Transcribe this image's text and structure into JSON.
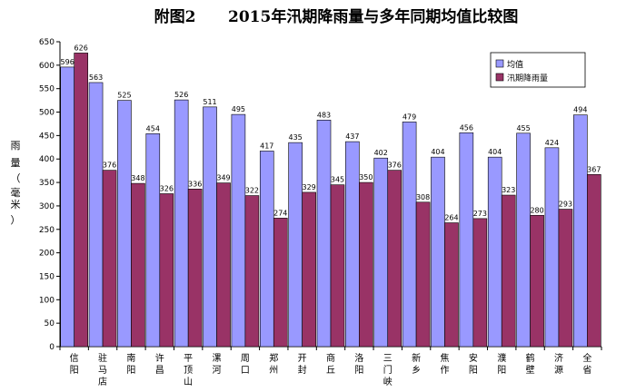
{
  "chart_data": {
    "type": "bar",
    "title": "附图2      2015年汛期降雨量与多年同期均值比较图",
    "ylabel": [
      "雨",
      "量",
      "（",
      "毫",
      "米",
      "）"
    ],
    "ylim": [
      0,
      650
    ],
    "yticks": [
      0,
      50,
      100,
      150,
      200,
      250,
      300,
      350,
      400,
      450,
      500,
      550,
      600,
      650
    ],
    "grid": false,
    "legend_position": "top-right",
    "categories": [
      [
        "信",
        "阳"
      ],
      [
        "驻",
        "马",
        "店"
      ],
      [
        "南",
        "阳"
      ],
      [
        "许",
        "昌"
      ],
      [
        "平",
        "顶",
        "山"
      ],
      [
        "漯",
        "河"
      ],
      [
        "周",
        "口"
      ],
      [
        "郑",
        "州"
      ],
      [
        "开",
        "封"
      ],
      [
        "商",
        "丘"
      ],
      [
        "洛",
        "阳"
      ],
      [
        "三",
        "门",
        "峡"
      ],
      [
        "新",
        "乡"
      ],
      [
        "焦",
        "作"
      ],
      [
        "安",
        "阳"
      ],
      [
        "濮",
        "阳"
      ],
      [
        "鹤",
        "壁"
      ],
      [
        "济",
        "源"
      ],
      [
        "全",
        "省"
      ]
    ],
    "series": [
      {
        "name": "均值",
        "color": "#9999ff",
        "values": [
          596,
          563,
          525,
          454,
          526,
          511,
          495,
          417,
          435,
          483,
          437,
          402,
          479,
          404,
          456,
          404,
          455,
          424,
          494
        ]
      },
      {
        "name": "汛期降雨量",
        "color": "#993366",
        "values": [
          626,
          376,
          348,
          326,
          336,
          349,
          322,
          274,
          329,
          345,
          350,
          376,
          308,
          264,
          273,
          323,
          280,
          293,
          367
        ]
      }
    ]
  }
}
